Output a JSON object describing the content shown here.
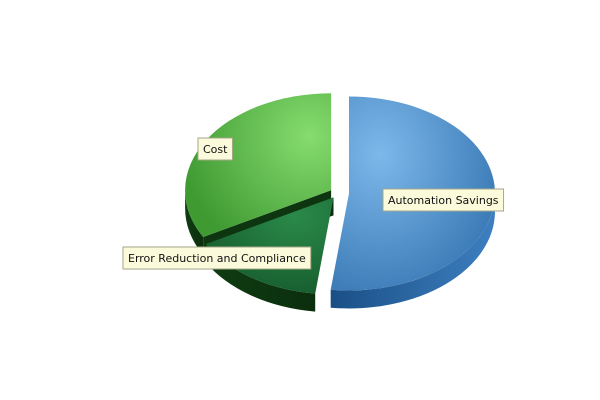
{
  "chart_data": {
    "type": "pie",
    "three_d": true,
    "exploded": true,
    "legend": "none",
    "labels_style": "callout boxes",
    "slices": [
      {
        "label": "Automation Savings",
        "value": 52,
        "color": "#4a8fd0"
      },
      {
        "label": "Error Reduction and Compliance",
        "value": 15,
        "color": "#1f7a3c"
      },
      {
        "label": "Cost",
        "value": 33,
        "color": "#5fc04f"
      }
    ]
  }
}
